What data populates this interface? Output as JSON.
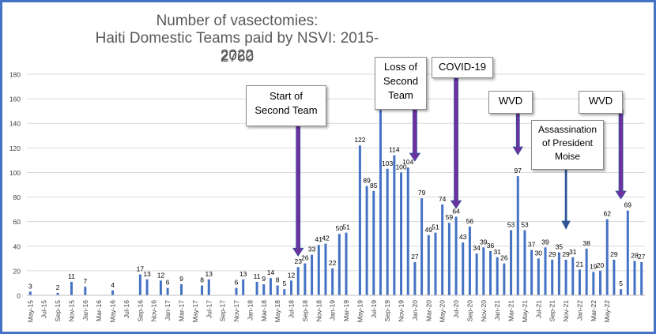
{
  "chart_data": {
    "type": "bar",
    "title": [
      "Number of vasectomies:",
      "Haiti Domestic Teams paid by NSVI: 2015-2022",
      "2760"
    ],
    "xlabel": "",
    "ylabel": "",
    "ylim": [
      0,
      180
    ],
    "yticks": [
      0,
      20,
      40,
      60,
      80,
      100,
      120,
      140,
      160,
      180
    ],
    "grid": true,
    "legend": "none",
    "bar_color": "#4472c4",
    "x_tick_labels": [
      "May-15",
      "Jul-15",
      "Sep-15",
      "Nov-15",
      "Jan-16",
      "Mar-16",
      "May-16",
      "Jul-16",
      "Sep-16",
      "Nov-16",
      "Jan-17",
      "Mar-17",
      "May-17",
      "Jul-17",
      "Sep-17",
      "Nov-17",
      "Jan-18",
      "Mar-18",
      "May-18",
      "Jul-18",
      "Sep-18",
      "Nov-18",
      "Jan-19",
      "Mar-19",
      "May-19",
      "Jul-19",
      "Sep-19",
      "Nov-19",
      "Jan-20",
      "Mar-20",
      "May-20",
      "Jul-20",
      "Sep-20",
      "Nov-20",
      "Jan-21",
      "Mar-21",
      "May-21",
      "Jul-21",
      "Sep-21",
      "Nov-21",
      "Jan-22",
      "Mar-22",
      "May-22"
    ],
    "values": [
      3,
      0,
      0,
      0,
      2,
      0,
      11,
      0,
      7,
      0,
      0,
      0,
      4,
      0,
      0,
      0,
      17,
      13,
      0,
      12,
      6,
      0,
      9,
      0,
      0,
      8,
      13,
      0,
      0,
      0,
      6,
      13,
      0,
      11,
      9,
      14,
      8,
      5,
      12,
      23,
      26,
      33,
      41,
      42,
      22,
      50,
      51,
      0,
      122,
      89,
      85,
      153,
      103,
      114,
      100,
      104,
      27,
      79,
      49,
      51,
      74,
      59,
      64,
      43,
      56,
      34,
      39,
      36,
      31,
      26,
      53,
      97,
      53,
      37,
      30,
      39,
      29,
      35,
      29,
      31,
      21,
      38,
      19,
      20,
      62,
      29,
      5,
      69,
      28,
      27
    ],
    "annotations": [
      {
        "id": "start-second-team",
        "text": [
          "Start of",
          "Second Team"
        ],
        "arrow_x_index": 39
      },
      {
        "id": "loss-second-team",
        "text": [
          "Loss of",
          "Second",
          "Team"
        ],
        "arrow_x_index": 56
      },
      {
        "id": "covid-19",
        "text": [
          "COVID-19"
        ],
        "arrow_x_index": 62
      },
      {
        "id": "wvd-1",
        "text": [
          "WVD"
        ],
        "arrow_x_index": 71
      },
      {
        "id": "assassination",
        "text": [
          "Assassination",
          "of President",
          "Moise"
        ],
        "arrow_x_index": 78
      },
      {
        "id": "wvd-2",
        "text": [
          "WVD"
        ],
        "arrow_x_index": 86
      }
    ]
  }
}
